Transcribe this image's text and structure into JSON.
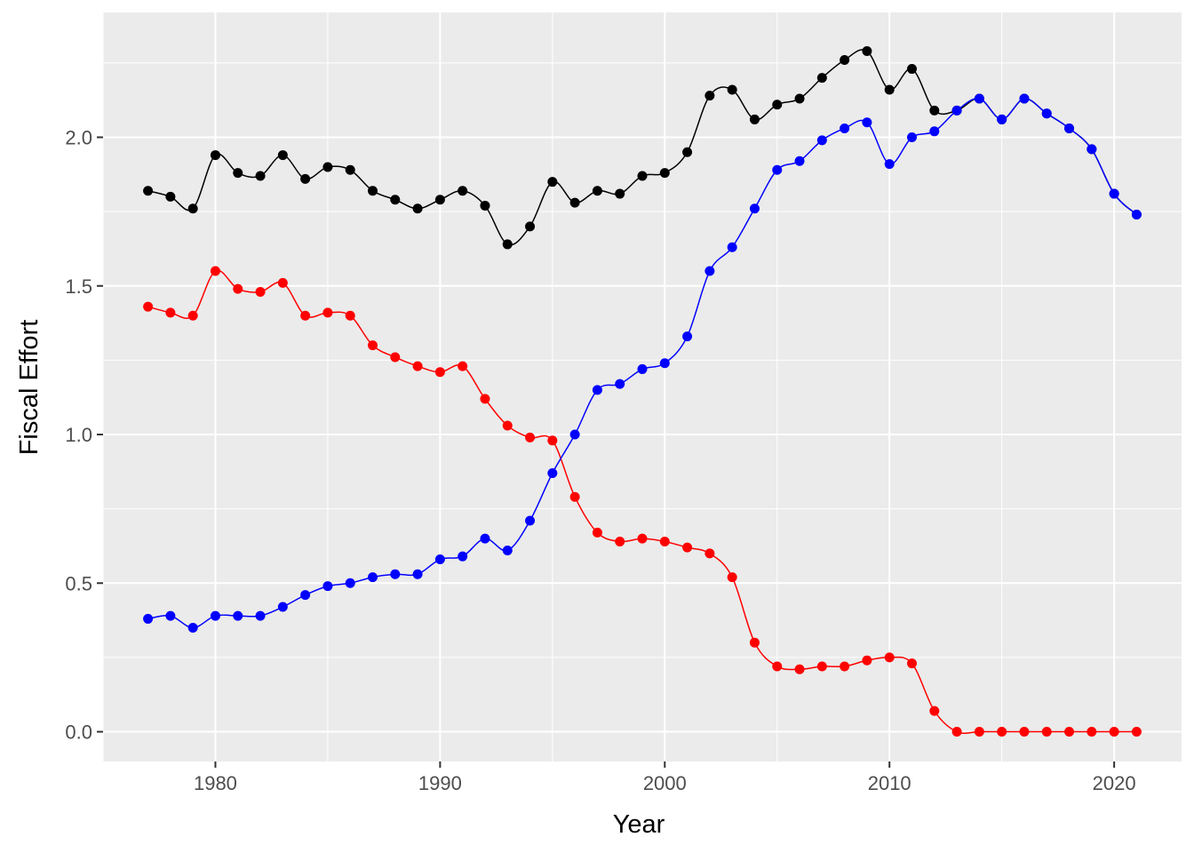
{
  "chart_data": {
    "type": "line",
    "xlabel": "Year",
    "ylabel": "Fiscal Effort",
    "xlim": [
      1975,
      2023
    ],
    "ylim": [
      -0.1,
      2.42
    ],
    "x_ticks": [
      1980,
      1990,
      2000,
      2010,
      2020
    ],
    "y_ticks": [
      0.0,
      0.5,
      1.0,
      1.5,
      2.0
    ],
    "y_tick_labels": [
      "0.0",
      "0.5",
      "1.0",
      "1.5",
      "2.0"
    ],
    "grid": true,
    "background": "#ebebeb",
    "x": [
      1977,
      1978,
      1979,
      1980,
      1981,
      1982,
      1983,
      1984,
      1985,
      1986,
      1987,
      1988,
      1989,
      1990,
      1991,
      1992,
      1993,
      1994,
      1995,
      1996,
      1997,
      1998,
      1999,
      2000,
      2001,
      2002,
      2003,
      2004,
      2005,
      2006,
      2007,
      2008,
      2009,
      2010,
      2011,
      2012,
      2013,
      2014,
      2015,
      2016,
      2017,
      2018,
      2019,
      2020,
      2021
    ],
    "series": [
      {
        "color": "#000000",
        "values": [
          1.82,
          1.8,
          1.76,
          1.94,
          1.88,
          1.87,
          1.94,
          1.86,
          1.9,
          1.89,
          1.82,
          1.79,
          1.76,
          1.79,
          1.82,
          1.77,
          1.64,
          1.7,
          1.85,
          1.78,
          1.82,
          1.81,
          1.87,
          1.88,
          1.95,
          2.14,
          2.16,
          2.06,
          2.11,
          2.13,
          2.2,
          2.26,
          2.29,
          2.16,
          2.23,
          2.09,
          2.09,
          2.13,
          2.06,
          2.13,
          2.08,
          2.03,
          1.96,
          1.81,
          1.74
        ]
      },
      {
        "color": "#ff0000",
        "values": [
          1.43,
          1.41,
          1.4,
          1.55,
          1.49,
          1.48,
          1.51,
          1.4,
          1.41,
          1.4,
          1.3,
          1.26,
          1.23,
          1.21,
          1.23,
          1.12,
          1.03,
          0.99,
          0.98,
          0.79,
          0.67,
          0.64,
          0.65,
          0.64,
          0.62,
          0.6,
          0.52,
          0.3,
          0.22,
          0.21,
          0.22,
          0.22,
          0.24,
          0.25,
          0.23,
          0.07,
          0.0,
          0.0,
          0.0,
          0.0,
          0.0,
          0.0,
          0.0,
          0.0,
          0.0
        ]
      },
      {
        "color": "#0000ff",
        "values": [
          0.38,
          0.39,
          0.35,
          0.39,
          0.39,
          0.39,
          0.42,
          0.46,
          0.49,
          0.5,
          0.52,
          0.53,
          0.53,
          0.58,
          0.59,
          0.65,
          0.61,
          0.71,
          0.87,
          1.0,
          1.15,
          1.17,
          1.22,
          1.24,
          1.33,
          1.55,
          1.63,
          1.76,
          1.89,
          1.92,
          1.99,
          2.03,
          2.05,
          1.91,
          2.0,
          2.02,
          2.09,
          2.13,
          2.06,
          2.13,
          2.08,
          2.03,
          1.96,
          1.81,
          1.74
        ]
      }
    ]
  }
}
